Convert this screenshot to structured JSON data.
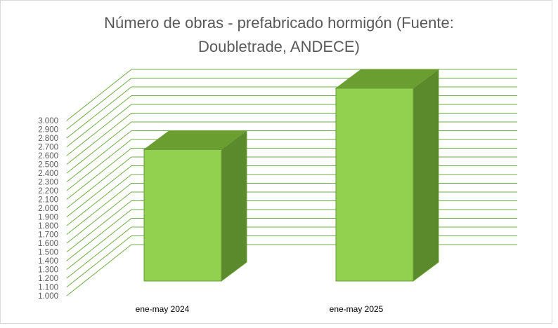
{
  "chart_data": {
    "type": "bar",
    "title_line1": "Número de obras - prefabricado hormigón (Fuente:",
    "title_line2": "Doubletrade, ANDECE)",
    "categories": [
      "ene-may 2024",
      "ene-may 2025"
    ],
    "series": [
      {
        "values": [
          2300,
          3000
        ]
      }
    ],
    "yticks": [
      "1.000",
      "1.100",
      "1.200",
      "1.300",
      "1.400",
      "1.500",
      "1.600",
      "1.700",
      "1.800",
      "1.900",
      "2.000",
      "2.100",
      "2.200",
      "2.300",
      "2.400",
      "2.500",
      "2.600",
      "2.700",
      "2.800",
      "2.900",
      "3.000"
    ],
    "ylim": [
      1000,
      3000
    ],
    "ytick_step": 100,
    "grid": true,
    "style": "3d-column",
    "colors": {
      "bar_front": "#92d050",
      "bar_top": "#6a9e31",
      "bar_side": "#5a8a2c",
      "bar_edge": "#6b9e38",
      "grid": "#70ad47",
      "tick_text": "#595959"
    }
  }
}
